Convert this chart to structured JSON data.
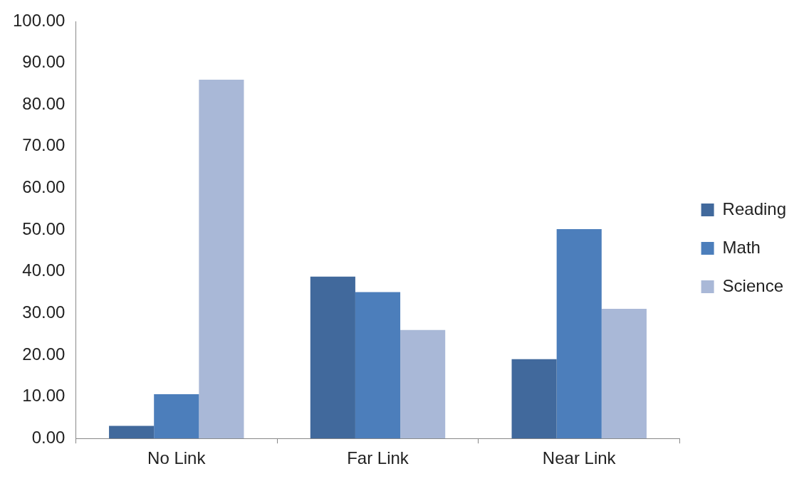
{
  "chart_data": {
    "type": "bar",
    "categories": [
      "No Link",
      "Far Link",
      "Near Link"
    ],
    "series": [
      {
        "name": "Reading",
        "color": "#41699c",
        "values": [
          3.0,
          38.8,
          19.0
        ]
      },
      {
        "name": "Math",
        "color": "#4c7ebb",
        "values": [
          10.6,
          35.1,
          50.2
        ]
      },
      {
        "name": "Science",
        "color": "#a9b8d7",
        "values": [
          86.0,
          26.0,
          31.1
        ]
      }
    ],
    "ylim": [
      0,
      100
    ],
    "yticks": [
      {
        "value": 0,
        "label": "0.00"
      },
      {
        "value": 10,
        "label": "10.00"
      },
      {
        "value": 20,
        "label": "20.00"
      },
      {
        "value": 30,
        "label": "30.00"
      },
      {
        "value": 40,
        "label": "40.00"
      },
      {
        "value": 50,
        "label": "50.00"
      },
      {
        "value": 60,
        "label": "60.00"
      },
      {
        "value": 70,
        "label": "70.00"
      },
      {
        "value": 80,
        "label": "80.00"
      },
      {
        "value": 90,
        "label": "90.00"
      },
      {
        "value": 100,
        "label": "100.00"
      }
    ],
    "grid": false,
    "legend": "right"
  }
}
